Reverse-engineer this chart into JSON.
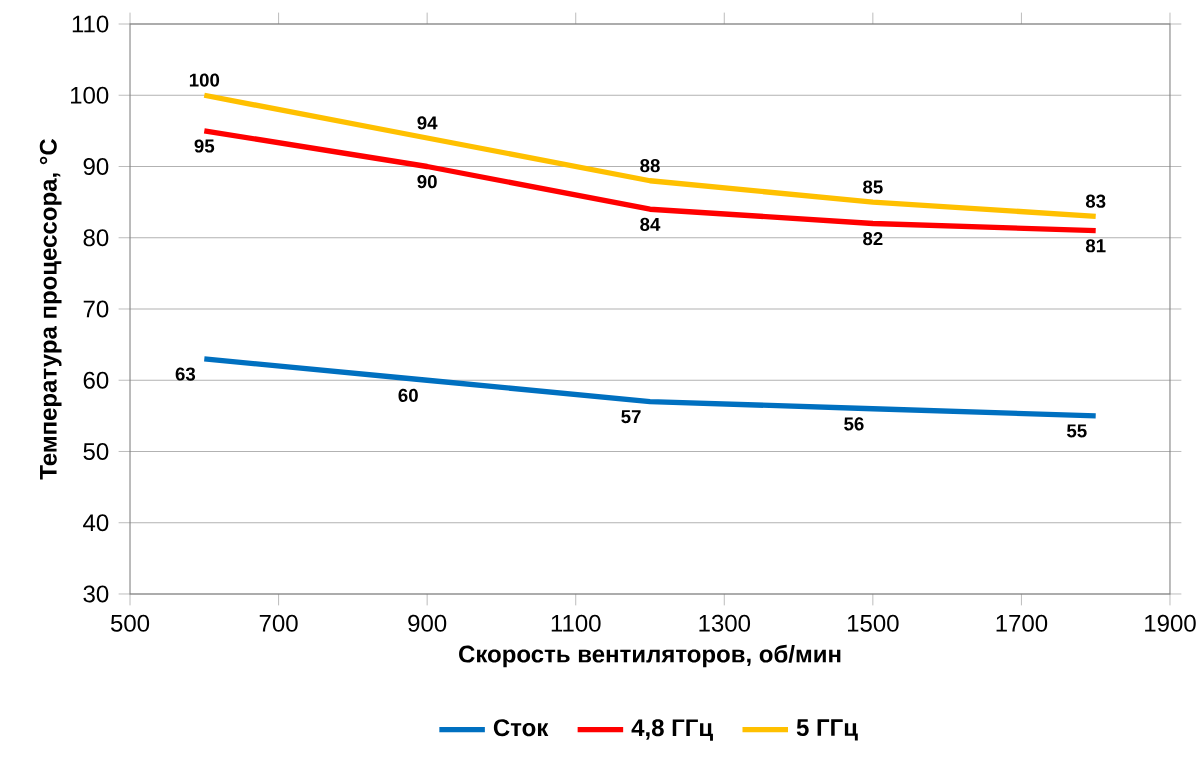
{
  "chart_data": {
    "type": "line",
    "xlabel": "Скорость вентиляторов, об/мин",
    "ylabel": "Температура процессора, °C",
    "x": [
      600,
      900,
      1200,
      1500,
      1800
    ],
    "series": [
      {
        "name": "Сток",
        "color": "#0070c0",
        "values": [
          63,
          60,
          57,
          56,
          55
        ]
      },
      {
        "name": "4,8 ГГц",
        "color": "#ff0000",
        "values": [
          95,
          90,
          84,
          82,
          81
        ]
      },
      {
        "name": "5 ГГц",
        "color": "#ffc000",
        "values": [
          100,
          94,
          88,
          85,
          83
        ]
      }
    ],
    "xlim": [
      500,
      1900
    ],
    "xticks": [
      500,
      700,
      900,
      1100,
      1300,
      1500,
      1700,
      1900
    ],
    "ylim": [
      30,
      110
    ],
    "yticks": [
      30,
      40,
      50,
      60,
      70,
      80,
      90,
      100,
      110
    ],
    "grid": "y",
    "legend": "bottom",
    "marker": "none",
    "line_style": "solid",
    "data_labels": true
  }
}
